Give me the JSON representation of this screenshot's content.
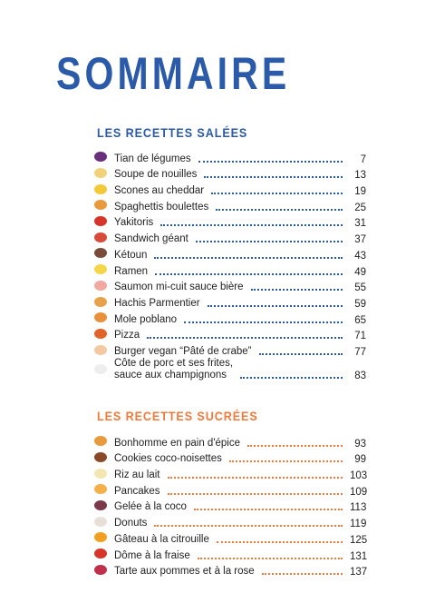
{
  "title": "SOMMAIRE",
  "sections": [
    {
      "heading": "LES RECETTES SALÉES",
      "items": [
        {
          "title": "Tian de légumes",
          "page": 7
        },
        {
          "title": "Soupe de nouilles",
          "page": 13
        },
        {
          "title": "Scones au cheddar",
          "page": 19
        },
        {
          "title": "Spaghettis boulettes",
          "page": 25
        },
        {
          "title": "Yakitoris",
          "page": 31
        },
        {
          "title": "Sandwich géant",
          "page": 37
        },
        {
          "title": "Kétoun",
          "page": 43
        },
        {
          "title": "Ramen",
          "page": 49
        },
        {
          "title": "Saumon mi-cuit sauce bière",
          "page": 55
        },
        {
          "title": "Hachis Parmentier",
          "page": 59
        },
        {
          "title": "Mole poblano",
          "page": 65
        },
        {
          "title": "Pizza",
          "page": 71
        },
        {
          "title": "Burger vegan “Pâté de crabe”",
          "page": 77
        },
        {
          "title": "Côte de porc et ses frites,\nsauce aux champignons",
          "page": 83
        }
      ]
    },
    {
      "heading": "LES RECETTES SUCRÉES",
      "items": [
        {
          "title": "Bonhomme en pain d'épice",
          "page": 93
        },
        {
          "title": "Cookies coco-noisettes",
          "page": 99
        },
        {
          "title": "Riz au lait",
          "page": 103
        },
        {
          "title": "Pancakes",
          "page": 109
        },
        {
          "title": "Gelée à la coco",
          "page": 113
        },
        {
          "title": "Donuts",
          "page": 119
        },
        {
          "title": "Gâteau à la citrouille",
          "page": 125
        },
        {
          "title": "Dôme à la fraise",
          "page": 131
        },
        {
          "title": "Tarte aux pommes et à la rose",
          "page": 137
        }
      ]
    }
  ]
}
